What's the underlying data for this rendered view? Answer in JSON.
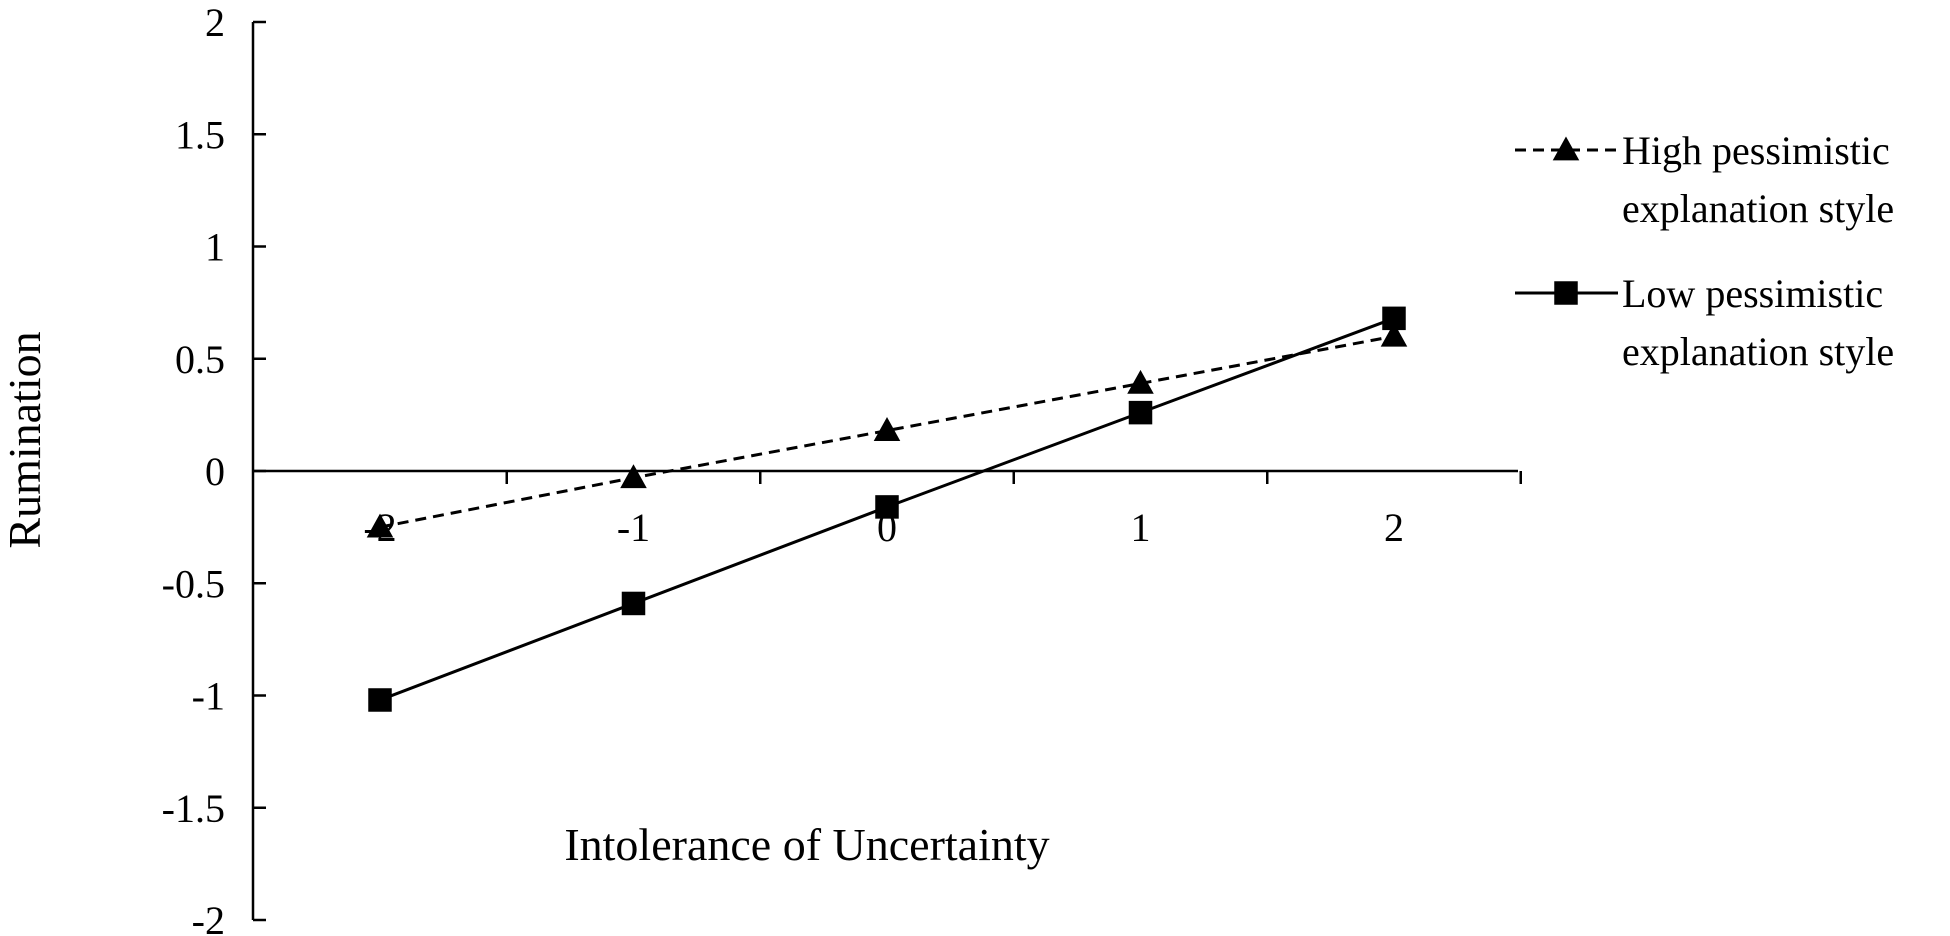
{
  "chart_data": {
    "type": "line",
    "xlabel": "Intolerance of Uncertainty",
    "ylabel": "Rumination",
    "xlim": [
      -2.5,
      2.5
    ],
    "ylim": [
      -2,
      2
    ],
    "x_ticks": [
      "-2",
      "-1",
      "0",
      "1",
      "2"
    ],
    "y_ticks": [
      "2",
      "1.5",
      "1",
      "0.5",
      "0",
      "-0.5",
      "-1",
      "-1.5",
      "-2"
    ],
    "x": [
      -2,
      -1,
      0,
      1,
      2
    ],
    "series": [
      {
        "name": "High pessimistic explanation style",
        "name_lines": [
          "High pessimistic",
          "explanation style"
        ],
        "values": [
          -0.25,
          -0.03,
          0.18,
          0.39,
          0.6
        ],
        "line_style": "dashed",
        "marker": "triangle",
        "color": "#000000"
      },
      {
        "name": "Low pessimistic explanation style",
        "name_lines": [
          "Low pessimistic",
          "explanation style"
        ],
        "values": [
          -1.02,
          -0.59,
          -0.16,
          0.26,
          0.68
        ],
        "line_style": "solid",
        "marker": "square",
        "color": "#000000"
      }
    ],
    "legend_position": "right",
    "grid": false
  }
}
